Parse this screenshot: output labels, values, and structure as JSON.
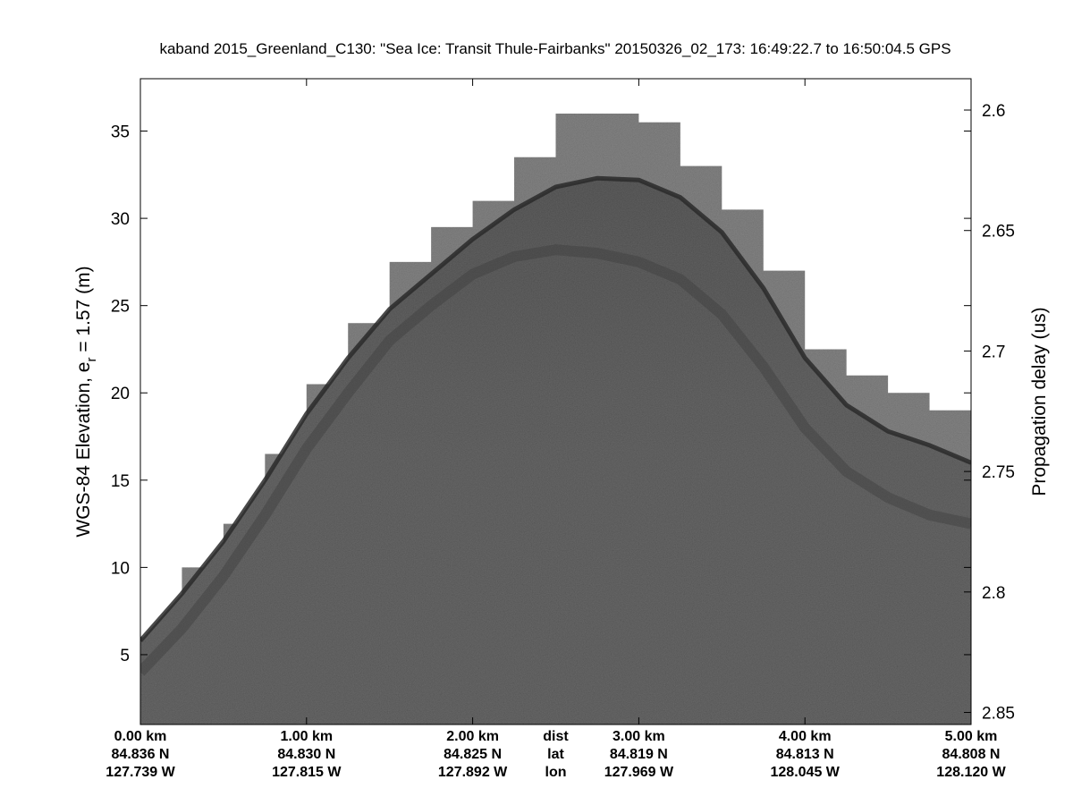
{
  "chart_data": {
    "type": "heatmap",
    "title": "kaband 2015_Greenland_C130: \"Sea Ice: Transit Thule-Fairbanks\"  20150326_02_173: 16:49:22.7 to 16:50:04.5 GPS",
    "ylabel_left_main": "WGS-84 Elevation, e",
    "ylabel_left_sub": "r",
    "ylabel_left_rest": " = 1.57 (m)",
    "ylabel_right": "Propagation delay (us)",
    "ylim_left": [
      1,
      38
    ],
    "ylim_right": [
      2.855,
      2.587
    ],
    "xlim_km": [
      0,
      5
    ],
    "colormap": "grayscale",
    "left_ticks": [
      {
        "value": 5,
        "label": "5"
      },
      {
        "value": 10,
        "label": "10"
      },
      {
        "value": 15,
        "label": "15"
      },
      {
        "value": 20,
        "label": "20"
      },
      {
        "value": 25,
        "label": "25"
      },
      {
        "value": 30,
        "label": "30"
      },
      {
        "value": 35,
        "label": "35"
      }
    ],
    "right_ticks": [
      {
        "value": 2.6,
        "label": "2.6"
      },
      {
        "value": 2.65,
        "label": "2.65"
      },
      {
        "value": 2.7,
        "label": "2.7"
      },
      {
        "value": 2.75,
        "label": "2.75"
      },
      {
        "value": 2.8,
        "label": "2.8"
      },
      {
        "value": 2.85,
        "label": "2.85"
      }
    ],
    "x_ticks": [
      {
        "km": 0.0,
        "dist": "0.00 km",
        "lat": "84.836 N",
        "lon": "127.739 W"
      },
      {
        "km": 1.0,
        "dist": "1.00 km",
        "lat": "84.830 N",
        "lon": "127.815 W"
      },
      {
        "km": 2.0,
        "dist": "2.00 km",
        "lat": "84.825 N",
        "lon": "127.892 W"
      },
      {
        "km": 3.0,
        "dist": "3.00 km",
        "lat": "84.819 N",
        "lon": "127.969 W"
      },
      {
        "km": 4.0,
        "dist": "4.00 km",
        "lat": "84.813 N",
        "lon": "128.045 W"
      },
      {
        "km": 5.0,
        "dist": "5.00 km",
        "lat": "84.808 N",
        "lon": "128.120 W"
      }
    ],
    "x_row_labels": {
      "km": 2.5,
      "dist": "dist",
      "lat": "lat",
      "lon": "lon"
    },
    "surface_profile": {
      "x_km": [
        0.0,
        0.25,
        0.5,
        0.75,
        1.0,
        1.25,
        1.5,
        1.75,
        2.0,
        2.25,
        2.5,
        2.75,
        3.0,
        3.25,
        3.5,
        3.75,
        4.0,
        4.25,
        4.5,
        4.75,
        5.0
      ],
      "surface_elev_m": [
        5.8,
        8.5,
        11.5,
        15.0,
        18.8,
        22.0,
        24.8,
        26.8,
        28.8,
        30.5,
        31.8,
        32.3,
        32.2,
        31.2,
        29.2,
        26.0,
        22.0,
        19.3,
        17.8,
        17.0,
        16.0
      ],
      "data_top_elev_m": [
        6.0,
        10.0,
        12.5,
        16.5,
        20.5,
        24.0,
        27.5,
        29.5,
        31.0,
        33.5,
        36.0,
        36.0,
        35.5,
        33.0,
        30.5,
        27.0,
        22.5,
        21.0,
        20.0,
        19.0,
        17.5
      ],
      "internal_layer_elev_m": [
        4.0,
        6.5,
        9.5,
        13.0,
        16.8,
        20.0,
        23.0,
        25.0,
        26.8,
        27.8,
        28.2,
        28.0,
        27.5,
        26.5,
        24.5,
        21.5,
        18.0,
        15.5,
        14.0,
        13.0,
        12.5
      ]
    }
  }
}
